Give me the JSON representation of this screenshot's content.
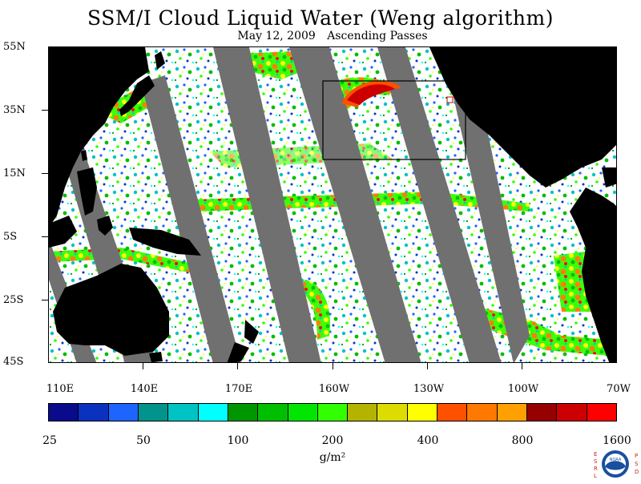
{
  "title": "SSM/I Cloud Liquid Water (Weng algorithm)",
  "subtitle": {
    "date": "May 12, 2009",
    "passes": "Ascending Passes"
  },
  "map": {
    "lat_labels": [
      "55N",
      "35N",
      "15N",
      "5S",
      "25S",
      "45S"
    ],
    "lon_labels": [
      "110E",
      "140E",
      "170E",
      "160W",
      "130W",
      "100W",
      "70W"
    ],
    "colors": {
      "land": "#000000",
      "no_data_swath_gap": "#707070",
      "ocean_clear": "#ffffff",
      "box_outline": "#000000",
      "small_box_outline": "#cc0000"
    }
  },
  "colorbar": {
    "colors": [
      "#0a0a8c",
      "#0a32be",
      "#1e64ff",
      "#00948c",
      "#00c3c3",
      "#00ffff",
      "#009600",
      "#00be00",
      "#00e600",
      "#32ff00",
      "#b4b400",
      "#dcdc00",
      "#ffff00",
      "#ff5000",
      "#ff7800",
      "#ffa000",
      "#960000",
      "#cc0000",
      "#ff0000"
    ],
    "labels": [
      "25",
      "50",
      "100",
      "200",
      "400",
      "800",
      "1600"
    ],
    "units": "g/m²"
  },
  "logo": {
    "left_letters": "ESRL",
    "right_letters": "PSD",
    "center_text": "NOAA",
    "colors": {
      "ring": "#1a4fa0",
      "letters": "#cc2020",
      "white": "#ffffff"
    }
  }
}
